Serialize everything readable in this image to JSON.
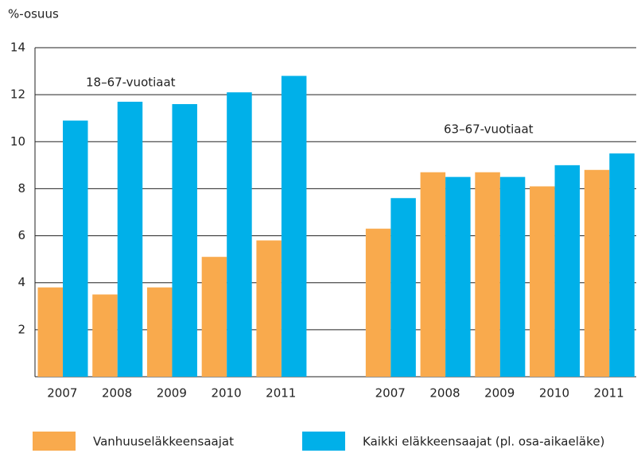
{
  "chart_data": {
    "type": "bar",
    "y_axis_label": "%-osuus",
    "annotations": [
      "18–67-vuotiaat",
      "63–67-vuotiaat"
    ],
    "categories": [
      "2007",
      "2008",
      "2009",
      "2010",
      "2011",
      null,
      "2007",
      "2008",
      "2009",
      "2010",
      "2011"
    ],
    "series": [
      {
        "name": "Vanhuuseläkkeensaajat",
        "color": "#f9aa4d",
        "values": [
          3.8,
          3.5,
          3.8,
          5.1,
          5.8,
          null,
          6.3,
          8.7,
          8.7,
          8.1,
          8.8
        ]
      },
      {
        "name": "Kaikki eläkkeensaajat (pl. osa-aikaeläke)",
        "color": "#00b0e9",
        "values": [
          10.9,
          11.7,
          11.6,
          12.1,
          12.8,
          null,
          7.6,
          8.5,
          8.5,
          9.0,
          9.5
        ]
      }
    ],
    "ylim": [
      0,
      14
    ],
    "yticks": [
      2,
      4,
      6,
      8,
      10,
      12,
      14
    ],
    "grid": true
  }
}
